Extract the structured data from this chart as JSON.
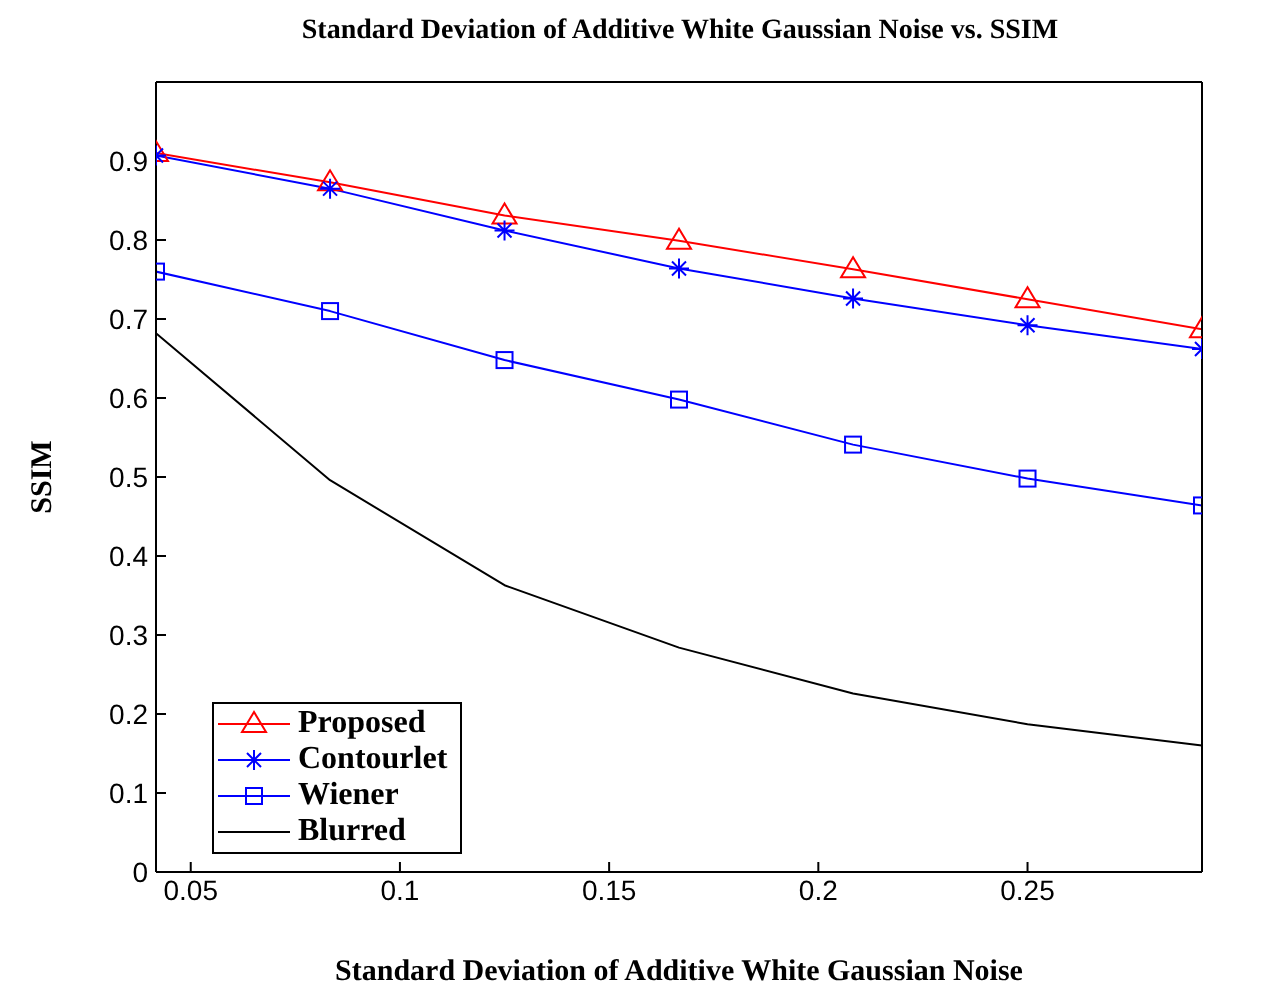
{
  "chart_data": {
    "type": "line",
    "title": "Standard Deviation of Additive White Gaussian Noise vs. SSIM",
    "xlabel": "Standard Deviation of Additive White Gaussian Noise",
    "ylabel": "SSIM",
    "x": [
      0.0417,
      0.0833,
      0.125,
      0.1667,
      0.2083,
      0.25,
      0.2917
    ],
    "series": [
      {
        "name": "Proposed",
        "color": "#ff0000",
        "marker": "triangle",
        "values": [
          0.91,
          0.873,
          0.831,
          0.799,
          0.763,
          0.725,
          0.687
        ]
      },
      {
        "name": "Contourlet",
        "color": "#0000ff",
        "marker": "cross",
        "values": [
          0.907,
          0.865,
          0.812,
          0.764,
          0.726,
          0.692,
          0.662
        ]
      },
      {
        "name": "Wiener",
        "color": "#0000ff",
        "marker": "square",
        "values": [
          0.76,
          0.71,
          0.648,
          0.598,
          0.541,
          0.498,
          0.464
        ]
      },
      {
        "name": "Blurred",
        "color": "#000000",
        "marker": "none",
        "values": [
          0.682,
          0.496,
          0.363,
          0.284,
          0.226,
          0.187,
          0.16
        ]
      }
    ],
    "xlim": [
      0.0417,
      0.2917
    ],
    "xticks": [
      0.05,
      0.1,
      0.15,
      0.2,
      0.25
    ],
    "ylim": [
      0,
      1
    ],
    "yticks": [
      0,
      0.1,
      0.2,
      0.3,
      0.4,
      0.5,
      0.6,
      0.7,
      0.8,
      0.9
    ],
    "grid": false,
    "legend": "bottom left",
    "line_style": "solid"
  }
}
